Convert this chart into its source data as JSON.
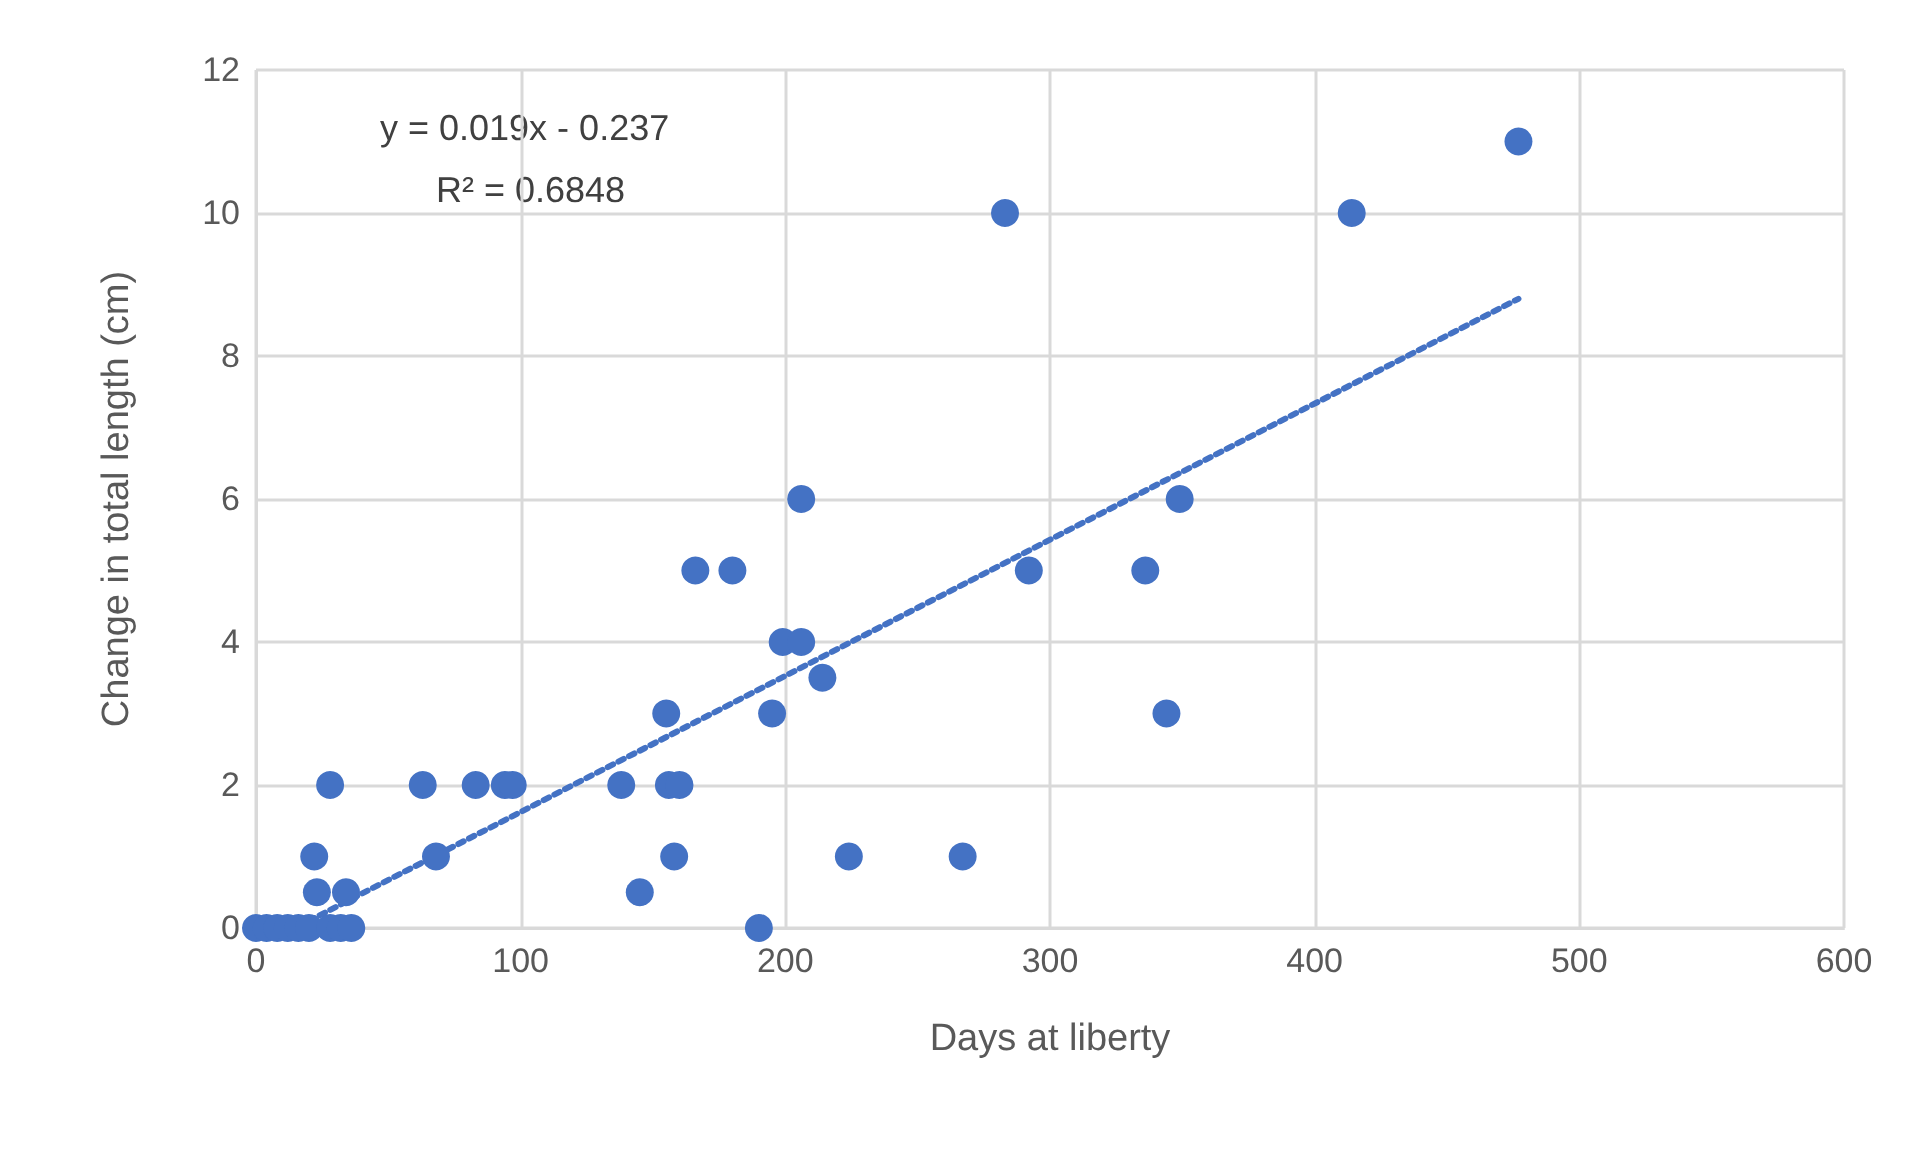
{
  "chart_data": {
    "type": "scatter",
    "xlabel": "Days at liberty",
    "ylabel": "Change in total length (cm)",
    "xlim": [
      0,
      600
    ],
    "xticks": [
      0,
      100,
      200,
      300,
      400,
      500,
      600
    ],
    "ylim": [
      0,
      12
    ],
    "yticks": [
      0,
      2,
      4,
      6,
      8,
      10,
      12
    ],
    "grid": true,
    "marker": "circle",
    "annotations": [
      "y = 0.019x - 0.237",
      "R² = 0.6848"
    ],
    "series": [
      {
        "color": "#4472c4",
        "x": [
          0,
          4,
          8,
          12,
          16,
          20,
          28,
          32,
          36,
          23,
          34,
          22,
          28,
          63,
          68,
          83,
          94,
          97,
          138,
          145,
          155,
          156,
          158,
          160,
          166,
          180,
          190,
          195,
          199,
          206,
          206,
          214,
          224,
          267,
          283,
          292,
          336,
          344,
          349,
          414,
          477
        ],
        "values": [
          0,
          0,
          0,
          0,
          0,
          0,
          0,
          0,
          0,
          0.5,
          0.5,
          1,
          2,
          2,
          1,
          2,
          2,
          2,
          2,
          0.5,
          3,
          2,
          1,
          2,
          5,
          5,
          0,
          3,
          4,
          4,
          6,
          3.5,
          1,
          1,
          10,
          5,
          5,
          3,
          6,
          10,
          11
        ]
      },
      {
        "type": "line",
        "color": "#4472c4",
        "line_style": "dotted",
        "marker": "none",
        "x": [
          20,
          477
        ],
        "values": [
          0.1,
          8.8
        ]
      }
    ]
  }
}
